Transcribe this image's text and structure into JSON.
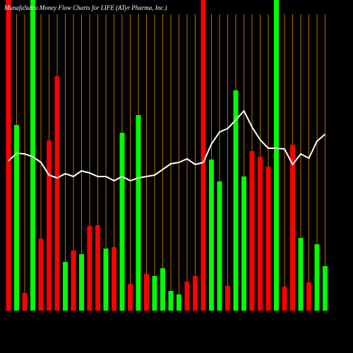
{
  "chart_data": {
    "type": "bar-line",
    "title": "MunafaSutra Money Flow Charts for LIFE (ATyr Pharma, Inc.)",
    "categories": [
      null,
      null,
      null,
      null,
      null,
      null,
      null,
      null,
      null,
      null,
      null,
      null,
      null,
      null,
      null,
      null,
      null,
      null,
      null,
      null,
      null,
      null,
      null,
      null,
      null,
      null,
      null,
      null,
      null,
      null,
      null,
      null,
      null,
      null,
      null,
      null,
      null,
      null,
      null,
      null
    ],
    "ylim": [
      0,
      440
    ],
    "grid": true,
    "grid_color": "#b86e00",
    "series": [
      {
        "type": "bar",
        "values": [
          440,
          263,
          25,
          440,
          102,
          241,
          332,
          69,
          85,
          80,
          120,
          121,
          88,
          90,
          252,
          38,
          277,
          52,
          49,
          60,
          28,
          23,
          41,
          49,
          440,
          214,
          183,
          35,
          312,
          190,
          226,
          218,
          204,
          440,
          34,
          235,
          103,
          40,
          94,
          63
        ],
        "colors": [
          "#ff0000",
          "#00ff00",
          "#ff0000",
          "#00ff00",
          "#ff0000",
          "#ff0000",
          "#ff0000",
          "#00ff00",
          "#ff0000",
          "#00ff00",
          "#ff0000",
          "#ff0000",
          "#00ff00",
          "#ff0000",
          "#00ff00",
          "#ff0000",
          "#00ff00",
          "#ff0000",
          "#00ff00",
          "#00ff00",
          "#00ff00",
          "#00ff00",
          "#ff0000",
          "#ff0000",
          "#ff0000",
          "#00ff00",
          "#00ff00",
          "#ff0000",
          "#00ff00",
          "#00ff00",
          "#ff0000",
          "#ff0000",
          "#ff0000",
          "#00ff00",
          "#ff0000",
          "#ff0000",
          "#00ff00",
          "#ff0000",
          "#00ff00",
          "#00ff00"
        ]
      },
      {
        "type": "line",
        "color": "#ffffff",
        "values": [
          212,
          223,
          222,
          218,
          210,
          192,
          188,
          194,
          190,
          198,
          195,
          190,
          190,
          184,
          190,
          184,
          188,
          190,
          192,
          200,
          208,
          210,
          215,
          207,
          210,
          236,
          253,
          258,
          270,
          283,
          260,
          242,
          230,
          230,
          229,
          207,
          222,
          216,
          240,
          250
        ]
      }
    ]
  }
}
